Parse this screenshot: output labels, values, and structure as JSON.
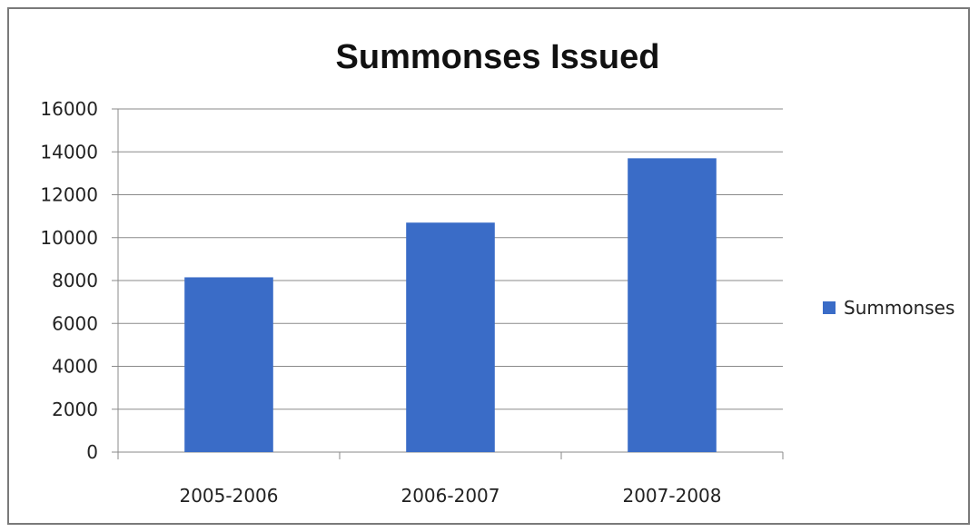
{
  "chart_data": {
    "type": "bar",
    "title": "Summonses Issued",
    "categories": [
      "2005-2006",
      "2006-2007",
      "2007-2008"
    ],
    "series": [
      {
        "name": "Summonses",
        "values": [
          8150,
          10700,
          13700
        ],
        "color": "#3a6cc7"
      }
    ],
    "ylim": [
      0,
      16000
    ],
    "yticks": [
      0,
      2000,
      4000,
      6000,
      8000,
      10000,
      12000,
      14000,
      16000
    ],
    "ytick_labels": [
      "0",
      "2000",
      "4000",
      "6000",
      "8000",
      "10000",
      "12000",
      "14000",
      "16000"
    ],
    "grid": true,
    "legend_position": "right"
  }
}
